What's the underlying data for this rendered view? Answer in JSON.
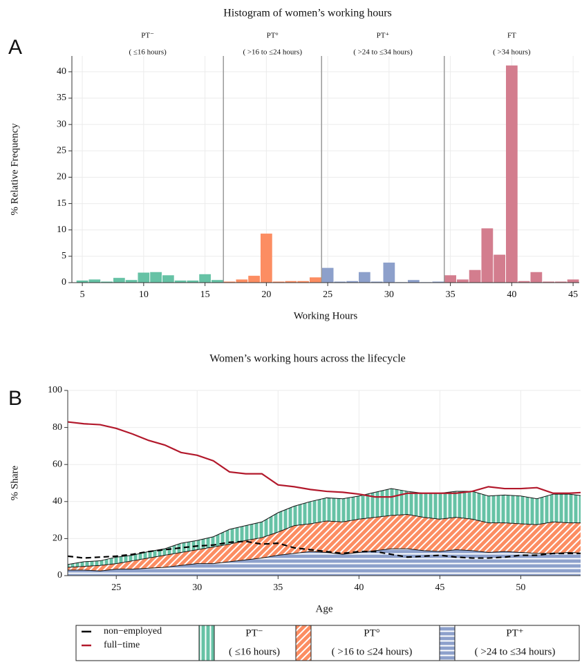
{
  "chart_data": [
    {
      "type": "histogram",
      "panel": "A",
      "title": "Histogram of women’s working hours",
      "xlabel": "Working Hours",
      "ylabel": "% Relative Frequency",
      "bins": [
        4.5,
        5.5,
        6.5,
        7.5,
        8.5,
        9.5,
        10.5,
        11.5,
        12.5,
        13.5,
        14.5,
        15.5,
        16.5,
        17.5,
        18.5,
        19.5,
        20.5,
        21.5,
        22.5,
        23.5,
        24.5,
        25.5,
        26.5,
        27.5,
        28.5,
        29.5,
        30.5,
        31.5,
        32.5,
        33.5,
        34.5,
        35.5,
        36.5,
        37.5,
        38.5,
        39.5,
        40.5,
        41.5,
        42.5,
        43.5,
        44.5,
        45.5
      ],
      "values": [
        0.4,
        0.6,
        0.2,
        0.9,
        0.5,
        1.9,
        2.0,
        1.4,
        0.4,
        0.4,
        1.6,
        0.5,
        0.2,
        0.6,
        1.3,
        9.3,
        0.2,
        0.3,
        0.3,
        1.0,
        2.8,
        0.2,
        0.3,
        2.0,
        0.2,
        3.8,
        0.1,
        0.5,
        0.1,
        0.2,
        1.4,
        0.6,
        2.4,
        10.3,
        5.3,
        41.2,
        0.3,
        2.0,
        0.2,
        0.2,
        0.6
      ],
      "vlines": [
        16.5,
        24.5,
        34.5
      ],
      "groups": [
        {
          "name": "PT⁻",
          "label": "( ≤16 hours)",
          "color": "#66c2a5"
        },
        {
          "name": "PT°",
          "label": "( >16 to  ≤24 hours)",
          "color": "#fc8d62"
        },
        {
          "name": "PT⁺",
          "label": "( >24 to  ≤34 hours)",
          "color": "#8da0cb"
        },
        {
          "name": "FT",
          "label": "( >34 hours)",
          "color": "#d37d8e"
        }
      ],
      "xlim": [
        4.15,
        45.5
      ],
      "ylim": [
        0,
        43
      ],
      "xticks": [
        5,
        10,
        15,
        20,
        25,
        30,
        35,
        40,
        45
      ],
      "yticks": [
        0,
        5,
        10,
        15,
        20,
        25,
        30,
        35,
        40
      ],
      "grid": true
    },
    {
      "type": "stacked-area",
      "panel": "B",
      "title": "Women’s working hours across the lifecycle",
      "xlabel": "Age",
      "ylabel": "% Share",
      "x": [
        22,
        23,
        24,
        25,
        26,
        27,
        28,
        29,
        30,
        31,
        32,
        33,
        34,
        35,
        36,
        37,
        38,
        39,
        40,
        41,
        42,
        43,
        44,
        45,
        46,
        47,
        48,
        49,
        50,
        51,
        52,
        53,
        54
      ],
      "series": [
        {
          "name": "non−employed",
          "kind": "line",
          "style": "dashed",
          "color": "#000000",
          "values": [
            10.5,
            9.5,
            10,
            10.5,
            11.5,
            13,
            14,
            15,
            16,
            16.5,
            18,
            18.5,
            17,
            17.5,
            15,
            14,
            13,
            12,
            13,
            13,
            11.5,
            10,
            10.5,
            11,
            10,
            9.5,
            9.5,
            10,
            11,
            11,
            12,
            12,
            12
          ]
        },
        {
          "name": "full−time",
          "kind": "line",
          "style": "solid",
          "color": "#b2182b",
          "values": [
            83,
            82,
            81.5,
            79.5,
            76.5,
            73,
            70.5,
            66.5,
            65,
            62,
            56,
            55,
            55,
            49,
            48,
            46.5,
            45.5,
            45,
            44,
            42.5,
            42.5,
            44.5,
            44.5,
            44.5,
            44.5,
            45.5,
            48,
            47,
            47,
            47.5,
            44.5,
            44.5,
            45
          ]
        },
        {
          "name": "PT⁻",
          "label": "( ≤16 hours)",
          "kind": "area",
          "hatch": "vertical",
          "color": "#66c2a5",
          "values": [
            1.5,
            2.5,
            2.5,
            3.5,
            3,
            3.5,
            3.5,
            5,
            5,
            5.5,
            8,
            8,
            8.5,
            10.5,
            10.5,
            12,
            12.5,
            12.5,
            12.5,
            13.5,
            14.5,
            12.5,
            13,
            14,
            14,
            15,
            14.5,
            15,
            15,
            14,
            15,
            15.5,
            14.5
          ]
        },
        {
          "name": "PT°",
          "label": "( >16 to  ≤24 hours)",
          "kind": "area",
          "hatch": "diagonal",
          "color": "#fc8d62",
          "values": [
            1.5,
            2,
            3,
            3,
            4.5,
            5.5,
            6.5,
            7,
            7.5,
            9,
            9.5,
            10.5,
            11,
            12.5,
            15,
            15,
            17,
            17.5,
            18,
            18,
            18,
            18.5,
            18,
            17.5,
            17.5,
            17,
            16,
            15.5,
            15.5,
            15.5,
            17,
            16,
            16.5
          ]
        },
        {
          "name": "PT⁺",
          "label": "( >24 to  ≤34 hours)",
          "kind": "area",
          "hatch": "horizontal",
          "color": "#8da0cb",
          "values": [
            3,
            3,
            2.5,
            3.5,
            3.5,
            4,
            4.5,
            5.5,
            6.5,
            6.5,
            7.5,
            8.5,
            9.5,
            11,
            12,
            13,
            12.5,
            11.5,
            12.5,
            13.5,
            14.5,
            14.5,
            13.5,
            13,
            14,
            13.5,
            12.5,
            13,
            12.5,
            12,
            12,
            12.5,
            12
          ]
        }
      ],
      "xlim": [
        22,
        53.7
      ],
      "ylim": [
        0,
        100
      ],
      "xticks": [
        25,
        30,
        35,
        40,
        45,
        50
      ],
      "yticks": [
        0,
        20,
        40,
        60,
        80,
        100
      ],
      "grid": true
    }
  ]
}
